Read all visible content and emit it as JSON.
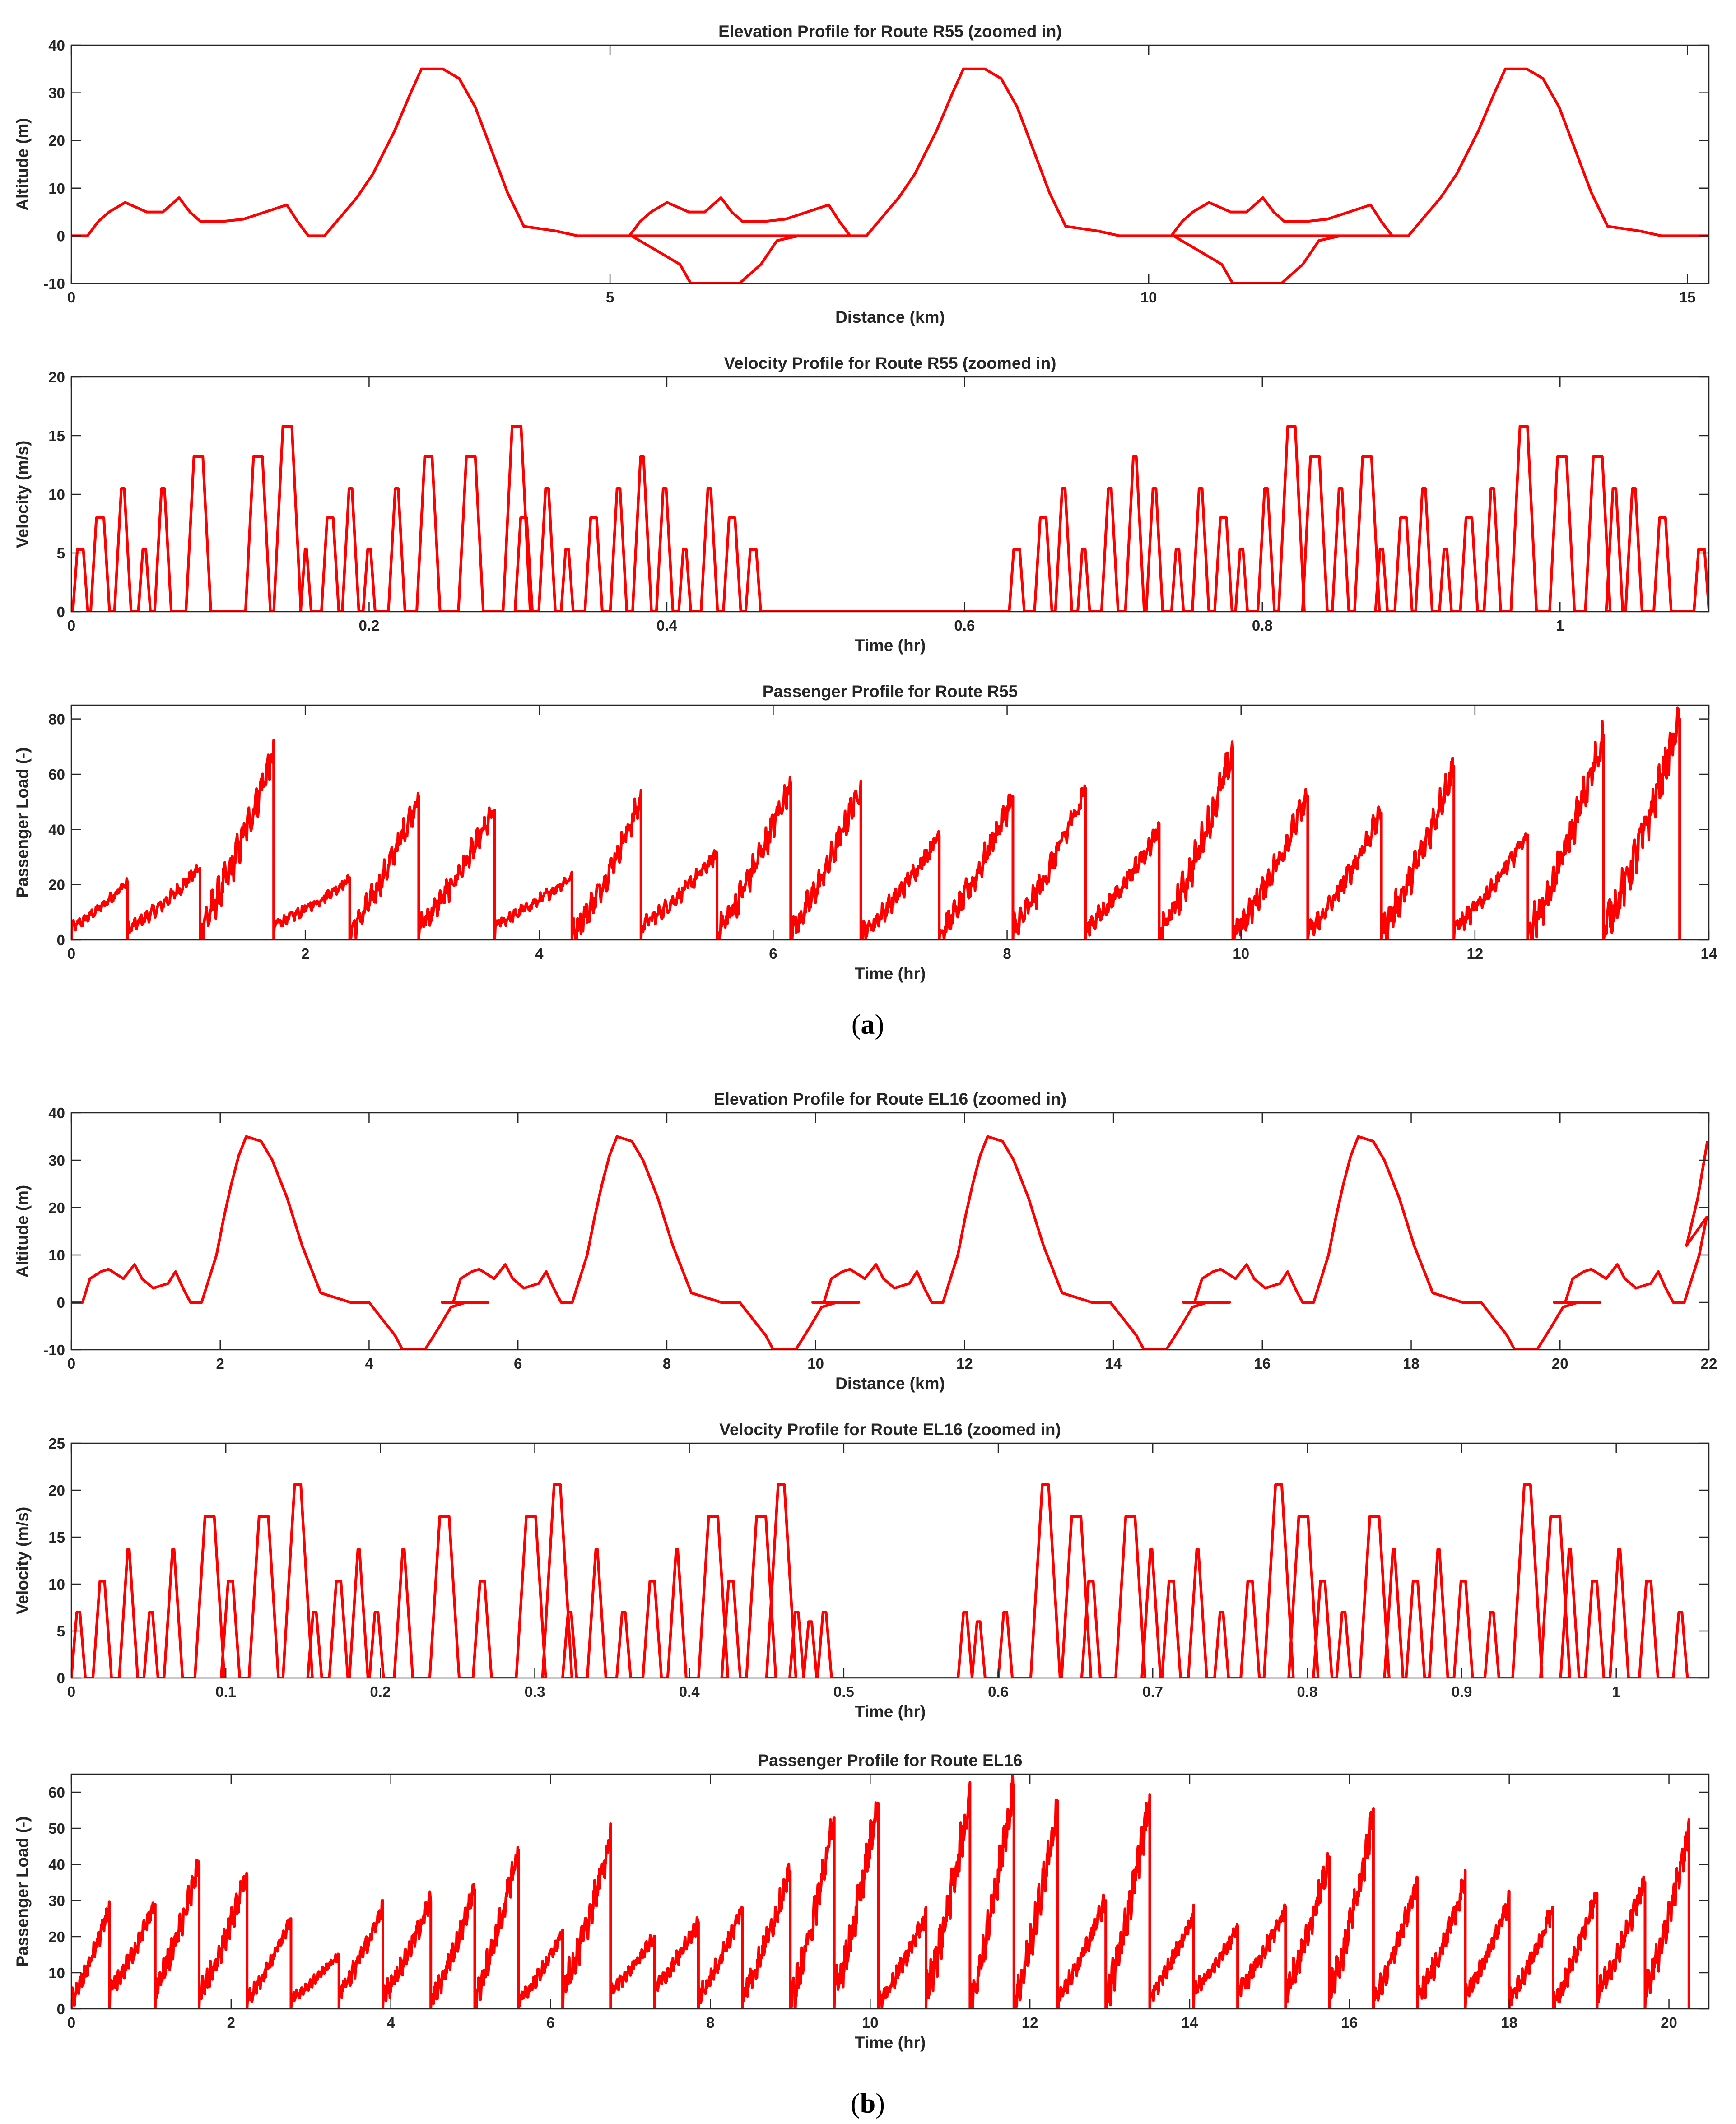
{
  "figure": {
    "caption_a": "(a)",
    "caption_a_letter": "a",
    "caption_b": "(b)",
    "caption_b_letter": "b"
  },
  "colors": {
    "line": "#ff0000",
    "axis": "#262626",
    "background": "#ffffff"
  },
  "chart_data": [
    {
      "id": "a1",
      "type": "line",
      "title": "Elevation Profile for Route R55 (zoomed in)",
      "xlabel": "Distance (km)",
      "ylabel": "Altitude (m)",
      "xlim": [
        0,
        15.2
      ],
      "ylim": [
        -10,
        40
      ],
      "xticks": [
        0,
        5,
        10,
        15
      ],
      "yticks": [
        -10,
        0,
        10,
        20,
        30,
        40
      ],
      "series": [
        {
          "name": "Altitude",
          "style": "elevation",
          "segment": [
            [
              0,
              0
            ],
            [
              0.15,
              0
            ],
            [
              0.25,
              3
            ],
            [
              0.35,
              5
            ],
            [
              0.5,
              7
            ],
            [
              0.6,
              6
            ],
            [
              0.7,
              5
            ],
            [
              0.85,
              5
            ],
            [
              1.0,
              8
            ],
            [
              1.1,
              5
            ],
            [
              1.2,
              3
            ],
            [
              1.4,
              3
            ],
            [
              1.6,
              3.5
            ],
            [
              2.0,
              6.5
            ],
            [
              2.1,
              3
            ],
            [
              2.2,
              0
            ],
            [
              2.35,
              0
            ],
            [
              2.5,
              4
            ],
            [
              2.65,
              8
            ],
            [
              2.8,
              13
            ],
            [
              3.0,
              22
            ],
            [
              3.15,
              30
            ],
            [
              3.25,
              35
            ],
            [
              3.45,
              35
            ],
            [
              3.6,
              33
            ],
            [
              3.75,
              27
            ],
            [
              3.9,
              18
            ],
            [
              4.05,
              9
            ],
            [
              4.2,
              2
            ],
            [
              4.5,
              1
            ],
            [
              4.7,
              0
            ],
            [
              5.2,
              0
            ],
            [
              5.5,
              -4
            ],
            [
              5.65,
              -6
            ],
            [
              5.75,
              -10
            ],
            [
              6.2,
              -10
            ],
            [
              6.4,
              -6
            ],
            [
              6.55,
              -1
            ],
            [
              6.75,
              0
            ],
            [
              7.0,
              0
            ],
            [
              7.3,
              0
            ]
          ],
          "period": 5.03,
          "repeat": 4
        }
      ]
    },
    {
      "id": "a2",
      "type": "line",
      "title": "Velocity Profile for Route R55 (zoomed in)",
      "xlabel": "Time (hr)",
      "ylabel": "Velocity (m/s)",
      "xlim": [
        0,
        1.1
      ],
      "ylim": [
        0,
        20
      ],
      "xticks": [
        0,
        0.2,
        0.4,
        0.6,
        0.8,
        1
      ],
      "xtick_labels": [
        "0",
        "0.2",
        "0.4",
        "0.6",
        "0.8",
        "1"
      ],
      "yticks": [
        0,
        5,
        10,
        15,
        20
      ],
      "series": [
        {
          "name": "Velocity",
          "style": "pulses",
          "pulse_start_times": [
            0.001,
            0.013,
            0.029,
            0.045,
            0.056,
            0.077,
            0.117,
            0.136,
            0.154,
            0.168,
            0.182,
            0.196,
            0.213,
            0.232,
            0.26,
            0.29,
            0.298,
            0.314,
            0.329,
            0.345,
            0.362,
            0.377,
            0.393,
            0.408,
            0.423,
            0.438,
            0.453,
            0.63,
            0.647,
            0.661,
            0.676,
            0.692,
            0.708,
            0.722,
            0.739,
            0.753,
            0.768,
            0.782,
            0.797,
            0.811,
            0.827,
            0.847,
            0.862,
            0.876,
            0.889,
            0.903,
            0.919,
            0.933,
            0.949,
            0.967,
            0.993,
            1.017,
            1.031,
            1.044,
            1.063,
            1.09
          ],
          "peak_values": [
            5.3,
            8,
            10.5,
            5.3,
            10.5,
            13.2,
            13.2,
            15.8,
            5.3,
            8,
            10.5,
            5.3,
            10.5,
            13.2,
            13.2,
            15.8,
            8,
            10.5,
            5.3,
            8,
            10.5,
            13.2,
            10.5,
            5.3,
            10.5,
            8,
            5.3,
            5.3,
            8,
            10.5,
            5.3,
            10.5,
            13.2,
            10.5,
            5.3,
            10.5,
            8,
            5.3,
            10.5,
            15.8,
            13.2,
            10.5,
            13.2,
            5.3,
            8,
            10.5,
            5.3,
            8,
            10.5,
            15.8,
            13.2,
            13.2,
            10.5,
            10.5,
            8,
            5.3
          ],
          "plateau_widths": [
            0.004,
            0.005,
            0.002,
            0.002,
            0.002,
            0.006,
            0.006,
            0.006,
            0.001,
            0.004,
            0.002,
            0.002,
            0.002,
            0.005,
            0.006,
            0.006,
            0.004,
            0.002,
            0.002,
            0.004,
            0.002,
            0.002,
            0.002,
            0.002,
            0.002,
            0.004,
            0.004,
            0.004,
            0.004,
            0.002,
            0.002,
            0.002,
            0.002,
            0.002,
            0.002,
            0.002,
            0.004,
            0.002,
            0.002,
            0.005,
            0.006,
            0.002,
            0.006,
            0.002,
            0.004,
            0.002,
            0.002,
            0.004,
            0.002,
            0.005,
            0.006,
            0.006,
            0.002,
            0.002,
            0.004,
            0.004
          ]
        }
      ]
    },
    {
      "id": "a3",
      "type": "line",
      "title": "Passenger Profile for Route R55",
      "xlabel": "Time (hr)",
      "ylabel": "Passenger Load (-)",
      "xlim": [
        0,
        14
      ],
      "ylim": [
        0,
        85
      ],
      "xticks": [
        0,
        2,
        4,
        6,
        8,
        10,
        12,
        14
      ],
      "yticks": [
        0,
        20,
        40,
        60,
        80
      ],
      "series": [
        {
          "name": "Passengers",
          "style": "noisy_ramps",
          "drop_times": [
            0.48,
            1.1,
            1.73,
            2.38,
            2.97,
            3.62,
            4.28,
            4.87,
            5.52,
            6.15,
            6.75,
            7.42,
            8.05,
            8.67,
            9.3,
            9.93,
            10.57,
            11.2,
            11.82,
            12.45,
            13.1,
            13.75
          ],
          "peak_values": [
            21,
            26,
            68,
            22,
            52,
            47,
            23,
            51,
            31,
            57,
            56,
            38,
            52,
            55,
            40,
            68,
            52,
            46,
            63,
            38,
            74,
            80
          ]
        }
      ]
    },
    {
      "id": "b1",
      "type": "line",
      "title": "Elevation Profile for Route EL16 (zoomed in)",
      "xlabel": "Distance (km)",
      "ylabel": "Altitude (m)",
      "xlim": [
        0,
        22
      ],
      "ylim": [
        -10,
        40
      ],
      "xticks": [
        0,
        2,
        4,
        6,
        8,
        10,
        12,
        14,
        16,
        18,
        20,
        22
      ],
      "yticks": [
        -10,
        0,
        10,
        20,
        30,
        40
      ],
      "series": [
        {
          "name": "Altitude",
          "style": "elevation",
          "segment": [
            [
              0,
              0
            ],
            [
              0.15,
              0
            ],
            [
              0.25,
              5
            ],
            [
              0.4,
              6.5
            ],
            [
              0.5,
              7
            ],
            [
              0.6,
              6
            ],
            [
              0.7,
              5
            ],
            [
              0.85,
              8
            ],
            [
              0.95,
              5
            ],
            [
              1.1,
              3
            ],
            [
              1.3,
              4
            ],
            [
              1.4,
              6.5
            ],
            [
              1.5,
              3
            ],
            [
              1.6,
              0
            ],
            [
              1.75,
              0
            ],
            [
              1.85,
              5
            ],
            [
              1.95,
              10
            ],
            [
              2.05,
              18
            ],
            [
              2.15,
              25
            ],
            [
              2.25,
              31
            ],
            [
              2.35,
              35
            ],
            [
              2.55,
              34
            ],
            [
              2.7,
              30
            ],
            [
              2.9,
              22
            ],
            [
              3.1,
              12
            ],
            [
              3.35,
              2
            ],
            [
              3.55,
              1
            ],
            [
              3.75,
              0
            ],
            [
              4.0,
              0
            ],
            [
              4.2,
              -4
            ],
            [
              4.35,
              -7
            ],
            [
              4.45,
              -10
            ],
            [
              4.75,
              -10
            ],
            [
              4.95,
              -5
            ],
            [
              5.1,
              -1
            ],
            [
              5.3,
              0
            ],
            [
              5.6,
              0
            ]
          ],
          "period": 4.98,
          "repeat": 5
        }
      ]
    },
    {
      "id": "b2",
      "type": "line",
      "title": "Velocity Profile for Route EL16 (zoomed in)",
      "xlabel": "Time (hr)",
      "ylabel": "Velocity (m/s)",
      "xlim": [
        0,
        1.06
      ],
      "ylim": [
        0,
        25
      ],
      "xticks": [
        0,
        0.1,
        0.2,
        0.3,
        0.4,
        0.5,
        0.6,
        0.7,
        0.8,
        0.9,
        1
      ],
      "xtick_labels": [
        "0",
        "0.1",
        "0.2",
        "0.3",
        "0.4",
        "0.5",
        "0.6",
        "0.7",
        "0.8",
        "0.9",
        "1"
      ],
      "yticks": [
        0,
        5,
        10,
        15,
        20,
        25
      ],
      "series": [
        {
          "name": "Velocity",
          "style": "pulses",
          "pulse_start_times": [
            0.0,
            0.014,
            0.031,
            0.047,
            0.06,
            0.08,
            0.097,
            0.115,
            0.137,
            0.153,
            0.167,
            0.18,
            0.193,
            0.209,
            0.232,
            0.26,
            0.288,
            0.305,
            0.318,
            0.334,
            0.353,
            0.37,
            0.386,
            0.406,
            0.421,
            0.437,
            0.45,
            0.465,
            0.474,
            0.483,
            0.574,
            0.583,
            0.6,
            0.621,
            0.641,
            0.654,
            0.676,
            0.693,
            0.706,
            0.723,
            0.74,
            0.757,
            0.772,
            0.788,
            0.804,
            0.819,
            0.834,
            0.85,
            0.864,
            0.879,
            0.895,
            0.915,
            0.933,
            0.951,
            0.964,
            0.98,
            0.996,
            1.015,
            1.037
          ],
          "peak_values": [
            7,
            10.3,
            13.7,
            7,
            13.7,
            17.2,
            10.3,
            17.2,
            20.6,
            7,
            10.3,
            13.7,
            7,
            13.7,
            17.2,
            10.3,
            17.2,
            20.6,
            7,
            13.7,
            7,
            10.3,
            13.7,
            17.2,
            10.3,
            17.2,
            20.6,
            7,
            6,
            7,
            7,
            6,
            7,
            20.6,
            17.2,
            10.3,
            17.2,
            13.7,
            10.3,
            13.7,
            7,
            10.3,
            20.6,
            17.2,
            10.3,
            7,
            17.2,
            13.7,
            10.3,
            13.7,
            10.3,
            7,
            20.6,
            17.2,
            13.7,
            10.3,
            13.7,
            10.3,
            7
          ],
          "plateau_widths": [
            0.002,
            0.003,
            0.001,
            0.002,
            0.001,
            0.006,
            0.003,
            0.006,
            0.004,
            0.002,
            0.003,
            0.001,
            0.002,
            0.001,
            0.006,
            0.003,
            0.006,
            0.004,
            0.002,
            0.001,
            0.002,
            0.003,
            0.001,
            0.006,
            0.003,
            0.006,
            0.004,
            0.002,
            0.002,
            0.002,
            0.002,
            0.002,
            0.002,
            0.004,
            0.006,
            0.003,
            0.006,
            0.001,
            0.003,
            0.001,
            0.002,
            0.003,
            0.004,
            0.006,
            0.003,
            0.002,
            0.006,
            0.001,
            0.003,
            0.001,
            0.003,
            0.002,
            0.004,
            0.006,
            0.001,
            0.003,
            0.001,
            0.003,
            0.002
          ]
        }
      ]
    },
    {
      "id": "b3",
      "type": "line",
      "title": "Passenger Profile for Route EL16",
      "xlabel": "Time (hr)",
      "ylabel": "Passenger Load (-)",
      "xlim": [
        0,
        20.5
      ],
      "ylim": [
        0,
        65
      ],
      "xticks": [
        0,
        2,
        4,
        6,
        8,
        10,
        12,
        14,
        16,
        18,
        20
      ],
      "yticks": [
        0,
        10,
        20,
        30,
        40,
        50,
        60
      ],
      "series": [
        {
          "name": "Passengers",
          "style": "noisy_ramps",
          "drop_times": [
            0.48,
            1.05,
            1.6,
            2.2,
            2.75,
            3.35,
            3.9,
            4.5,
            5.05,
            5.6,
            6.15,
            6.75,
            7.3,
            7.85,
            8.4,
            9.0,
            9.55,
            10.1,
            10.7,
            11.25,
            11.8,
            12.35,
            12.95,
            13.5,
            14.05,
            14.6,
            15.2,
            15.75,
            16.3,
            16.85,
            17.45,
            18.0,
            18.55,
            19.1,
            19.7,
            20.25
          ],
          "peak_values": [
            28,
            29,
            40,
            37,
            25,
            15,
            28,
            30,
            33,
            44,
            21,
            47,
            20,
            24,
            28,
            38,
            53,
            57,
            26,
            59,
            62,
            56,
            30,
            58,
            26,
            22,
            28,
            42,
            53,
            35,
            35,
            30,
            28,
            32,
            35,
            49
          ]
        }
      ]
    }
  ]
}
